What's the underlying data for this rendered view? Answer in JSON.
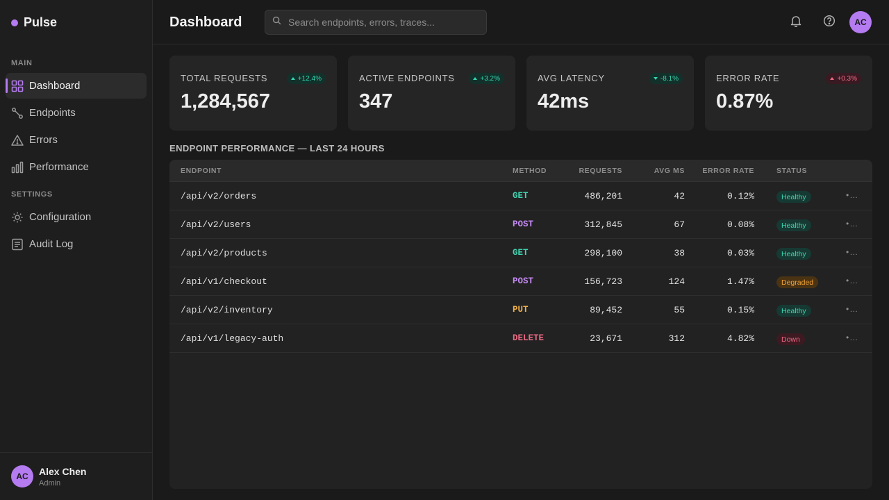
{
  "brand": {
    "name": "Pulse",
    "accent": "#b57bf0"
  },
  "sidebar": {
    "sections": [
      {
        "label": "MAIN"
      },
      {
        "label": "SETTINGS"
      }
    ],
    "items": [
      {
        "label": "Dashboard",
        "icon": "grid-icon",
        "active": true
      },
      {
        "label": "Endpoints",
        "icon": "route-icon"
      },
      {
        "label": "Errors",
        "icon": "warning-icon"
      },
      {
        "label": "Performance",
        "icon": "bar-chart-icon"
      },
      {
        "label": "Configuration",
        "icon": "gear-icon"
      },
      {
        "label": "Audit Log",
        "icon": "document-icon"
      }
    ],
    "user": {
      "initials": "AC",
      "name": "Alex Chen",
      "role": "Admin"
    }
  },
  "header": {
    "title": "Dashboard",
    "search_placeholder": "Search endpoints, errors, traces...",
    "avatar_initials": "AC"
  },
  "stats": [
    {
      "label": "TOTAL REQUESTS",
      "value": "1,284,567",
      "delta": "+12.4%",
      "trend": "up"
    },
    {
      "label": "ACTIVE ENDPOINTS",
      "value": "347",
      "delta": "+3.2%",
      "trend": "up"
    },
    {
      "label": "AVG LATENCY",
      "value": "42ms",
      "delta": "-8.1%",
      "trend": "down-good"
    },
    {
      "label": "ERROR RATE",
      "value": "0.87%",
      "delta": "+0.3%",
      "trend": "bad"
    }
  ],
  "table": {
    "title": "ENDPOINT PERFORMANCE — LAST 24 HOURS",
    "columns": [
      "ENDPOINT",
      "METHOD",
      "REQUESTS",
      "AVG MS",
      "ERROR RATE",
      "STATUS"
    ],
    "rows": [
      {
        "endpoint": "/api/v2/orders",
        "method": "GET",
        "requests": "486,201",
        "avg_ms": "42",
        "error_rate": "0.12%",
        "status": "Healthy"
      },
      {
        "endpoint": "/api/v2/users",
        "method": "POST",
        "requests": "312,845",
        "avg_ms": "67",
        "error_rate": "0.08%",
        "status": "Healthy"
      },
      {
        "endpoint": "/api/v2/products",
        "method": "GET",
        "requests": "298,100",
        "avg_ms": "38",
        "error_rate": "0.03%",
        "status": "Healthy"
      },
      {
        "endpoint": "/api/v1/checkout",
        "method": "POST",
        "requests": "156,723",
        "avg_ms": "124",
        "error_rate": "1.47%",
        "status": "Degraded"
      },
      {
        "endpoint": "/api/v2/inventory",
        "method": "PUT",
        "requests": "89,452",
        "avg_ms": "55",
        "error_rate": "0.15%",
        "status": "Healthy"
      },
      {
        "endpoint": "/api/v1/legacy-auth",
        "method": "DELETE",
        "requests": "23,671",
        "avg_ms": "312",
        "error_rate": "4.82%",
        "status": "Down"
      }
    ],
    "row_menu": "•…"
  },
  "colors": {
    "GET": "#3ed6b2",
    "POST": "#c58af5",
    "PUT": "#f0b04a",
    "DELETE": "#ec6a84"
  }
}
